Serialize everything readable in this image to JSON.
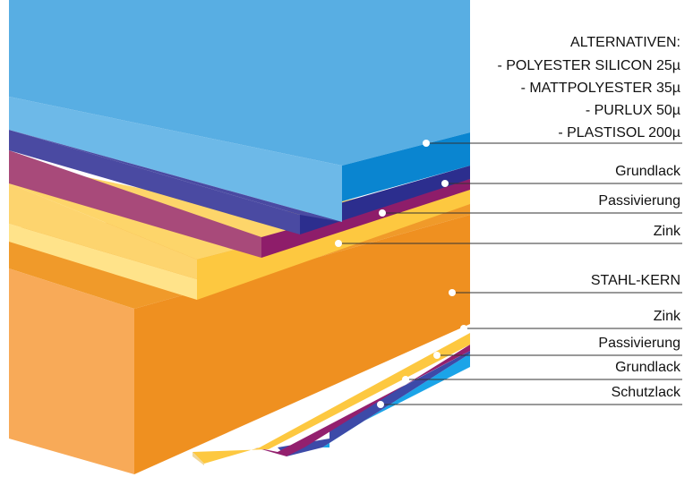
{
  "top_coating": {
    "title": "ALTERNATIVEN:",
    "options": [
      "- POLYESTER SILICON 25µ",
      "- MATTPOLYESTER 35µ",
      "- PURLUX 50µ",
      "- PLASTISOL 200µ"
    ]
  },
  "layers": [
    {
      "label": "Grundlack"
    },
    {
      "label": "Passivierung"
    },
    {
      "label": "Zink"
    },
    {
      "label": "STAHL-KERN"
    },
    {
      "label": "Zink"
    },
    {
      "label": "Passivierung"
    },
    {
      "label": "Grundlack"
    },
    {
      "label": "Schutzlack"
    }
  ]
}
